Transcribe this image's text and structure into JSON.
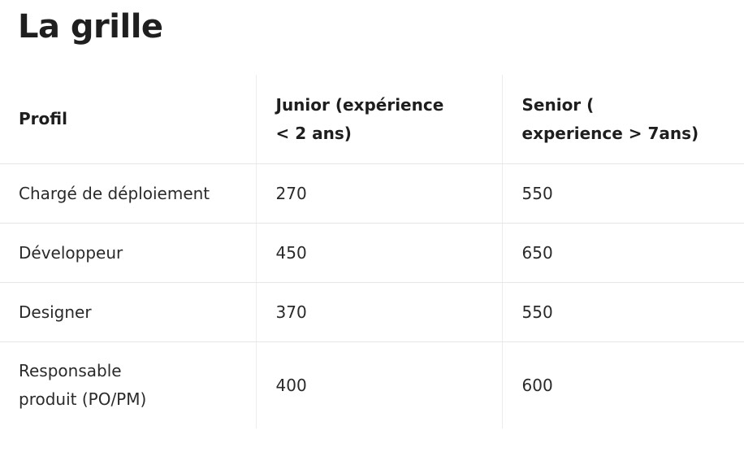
{
  "page": {
    "title": "La grille"
  },
  "table": {
    "headers": [
      [
        "Profil"
      ],
      [
        "Junior (expérience",
        "< 2 ans)"
      ],
      [
        "Senior (",
        "experience > 7ans)"
      ]
    ],
    "rows": [
      {
        "profile": [
          "Chargé de déploiement"
        ],
        "junior": "270",
        "senior": "550"
      },
      {
        "profile": [
          "Développeur"
        ],
        "junior": "450",
        "senior": "650"
      },
      {
        "profile": [
          "Designer"
        ],
        "junior": "370",
        "senior": "550"
      },
      {
        "profile": [
          "Responsable",
          "produit (PO/PM)"
        ],
        "junior": "400",
        "senior": "600"
      }
    ]
  },
  "colors": {
    "text": "#222222",
    "border": "#e6e6e6",
    "background": "#ffffff"
  }
}
